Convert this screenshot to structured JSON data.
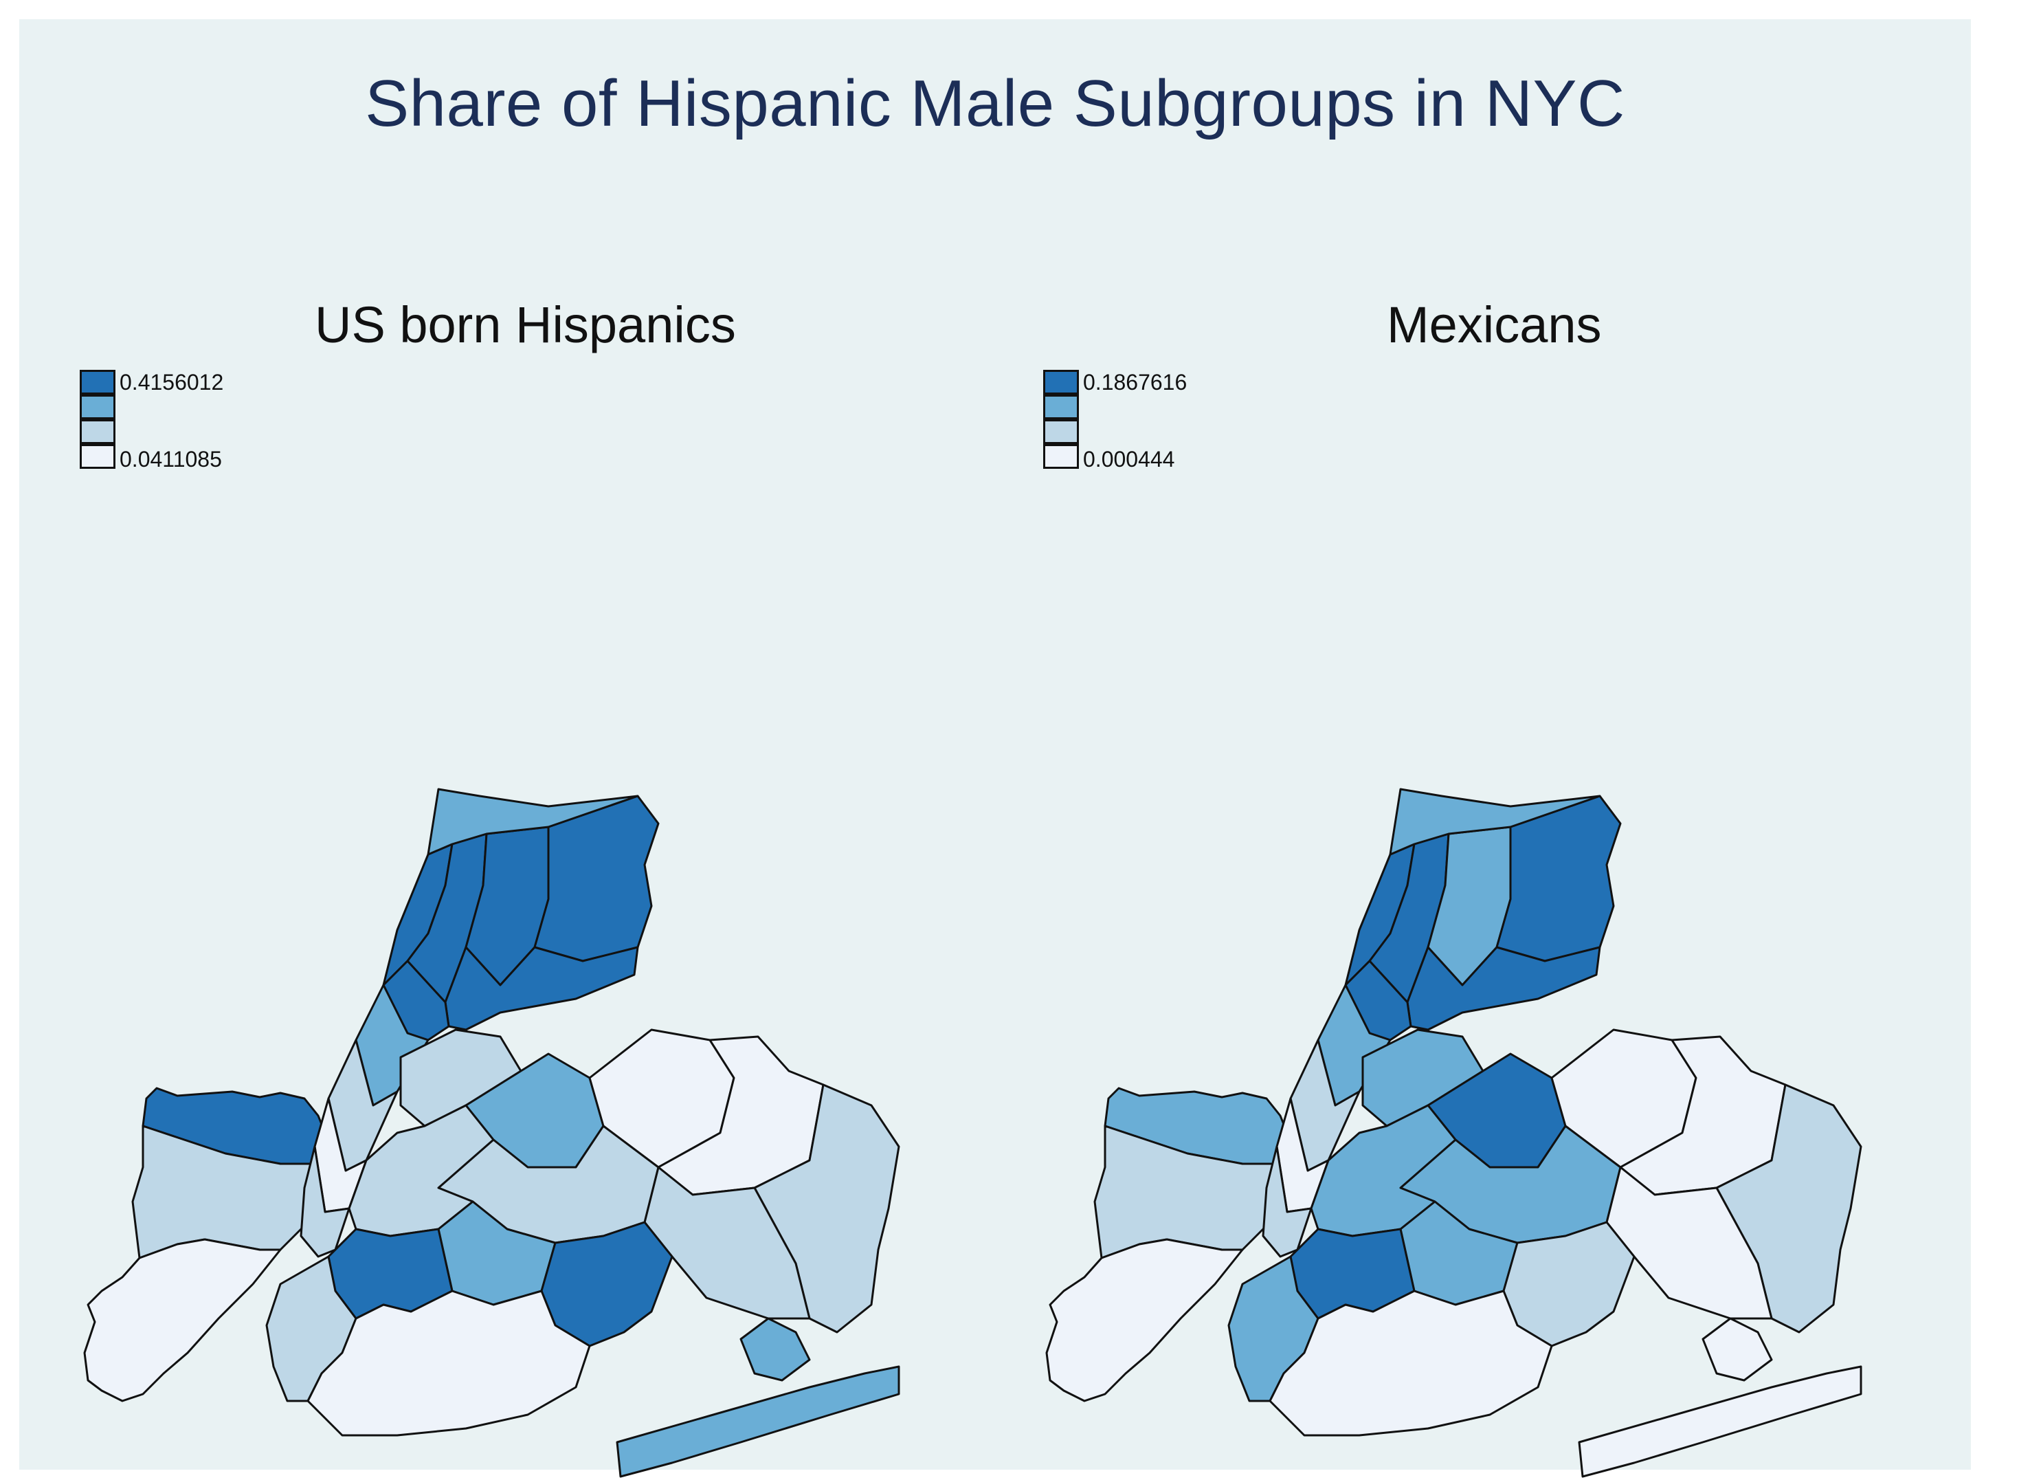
{
  "title": "Share of Hispanic Male Subgroups in NYC",
  "palette": [
    "#eef3fa",
    "#bed7e7",
    "#6aaed6",
    "#2271b5"
  ],
  "background": "#e9f2f3",
  "maps": [
    {
      "subtitle": "US born Hispanics",
      "legend": {
        "max_label": "0.4156012",
        "min_label": "0.0411085"
      },
      "classes": {
        "staten_north": 3,
        "staten_middle": 1,
        "staten_south": 0,
        "bronx_west_river": 3,
        "bronx_west_central": 3,
        "bronx_central": 3,
        "bronx_east": 3,
        "bronx_south": 3,
        "bronx_north": 2,
        "manhattan_inwood": 3,
        "manhattan_harlem": 2,
        "manhattan_uws": 1,
        "manhattan_midtown": 0,
        "manhattan_lower": 1,
        "queens_astoria": 1,
        "queens_jackson": 2,
        "queens_flushing": 0,
        "queens_bayside": 0,
        "queens_east": 1,
        "queens_jamaica": 1,
        "queens_central": 1,
        "brooklyn_north": 1,
        "brooklyn_bushwick": 2,
        "brooklyn_east": 3,
        "brooklyn_sunset": 3,
        "brooklyn_bayridge": 1,
        "brooklyn_south": 0,
        "rockaway": 2,
        "jamaica_bay": 2
      }
    },
    {
      "subtitle": "Mexicans",
      "legend": {
        "max_label": "0.1867616",
        "min_label": "0.000444"
      },
      "classes": {
        "staten_north": 2,
        "staten_middle": 1,
        "staten_south": 0,
        "bronx_west_river": 3,
        "bronx_west_central": 3,
        "bronx_central": 2,
        "bronx_east": 3,
        "bronx_south": 3,
        "bronx_north": 2,
        "manhattan_inwood": 3,
        "manhattan_harlem": 2,
        "manhattan_uws": 1,
        "manhattan_midtown": 0,
        "manhattan_lower": 1,
        "queens_astoria": 2,
        "queens_jackson": 3,
        "queens_flushing": 0,
        "queens_bayside": 0,
        "queens_east": 1,
        "queens_jamaica": 0,
        "queens_central": 2,
        "brooklyn_north": 2,
        "brooklyn_bushwick": 2,
        "brooklyn_east": 1,
        "brooklyn_sunset": 3,
        "brooklyn_bayridge": 2,
        "brooklyn_south": 0,
        "rockaway": 0,
        "jamaica_bay": 0
      }
    }
  ]
}
